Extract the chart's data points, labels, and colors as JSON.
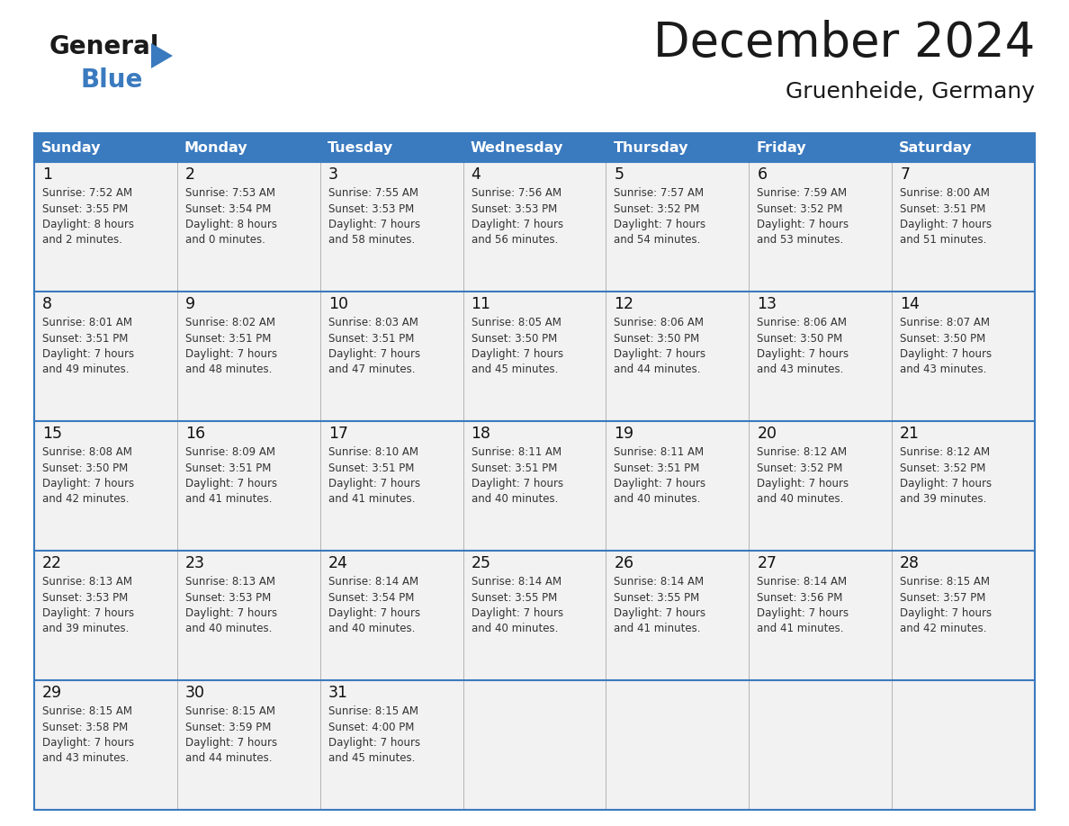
{
  "title": "December 2024",
  "subtitle": "Gruenheide, Germany",
  "header_color": "#3a7abf",
  "header_text_color": "#ffffff",
  "cell_bg_color": "#f2f2f2",
  "cell_bg_alt_color": "#ffffff",
  "border_color": "#3a7abf",
  "row_line_color": "#3a7abf",
  "day_headers": [
    "Sunday",
    "Monday",
    "Tuesday",
    "Wednesday",
    "Thursday",
    "Friday",
    "Saturday"
  ],
  "days": [
    {
      "day": 1,
      "col": 0,
      "row": 0,
      "sunrise": "7:52 AM",
      "sunset": "3:55 PM",
      "daylight": "8 hours and 2 minutes."
    },
    {
      "day": 2,
      "col": 1,
      "row": 0,
      "sunrise": "7:53 AM",
      "sunset": "3:54 PM",
      "daylight": "8 hours and 0 minutes."
    },
    {
      "day": 3,
      "col": 2,
      "row": 0,
      "sunrise": "7:55 AM",
      "sunset": "3:53 PM",
      "daylight": "7 hours and 58 minutes."
    },
    {
      "day": 4,
      "col": 3,
      "row": 0,
      "sunrise": "7:56 AM",
      "sunset": "3:53 PM",
      "daylight": "7 hours and 56 minutes."
    },
    {
      "day": 5,
      "col": 4,
      "row": 0,
      "sunrise": "7:57 AM",
      "sunset": "3:52 PM",
      "daylight": "7 hours and 54 minutes."
    },
    {
      "day": 6,
      "col": 5,
      "row": 0,
      "sunrise": "7:59 AM",
      "sunset": "3:52 PM",
      "daylight": "7 hours and 53 minutes."
    },
    {
      "day": 7,
      "col": 6,
      "row": 0,
      "sunrise": "8:00 AM",
      "sunset": "3:51 PM",
      "daylight": "7 hours and 51 minutes."
    },
    {
      "day": 8,
      "col": 0,
      "row": 1,
      "sunrise": "8:01 AM",
      "sunset": "3:51 PM",
      "daylight": "7 hours and 49 minutes."
    },
    {
      "day": 9,
      "col": 1,
      "row": 1,
      "sunrise": "8:02 AM",
      "sunset": "3:51 PM",
      "daylight": "7 hours and 48 minutes."
    },
    {
      "day": 10,
      "col": 2,
      "row": 1,
      "sunrise": "8:03 AM",
      "sunset": "3:51 PM",
      "daylight": "7 hours and 47 minutes."
    },
    {
      "day": 11,
      "col": 3,
      "row": 1,
      "sunrise": "8:05 AM",
      "sunset": "3:50 PM",
      "daylight": "7 hours and 45 minutes."
    },
    {
      "day": 12,
      "col": 4,
      "row": 1,
      "sunrise": "8:06 AM",
      "sunset": "3:50 PM",
      "daylight": "7 hours and 44 minutes."
    },
    {
      "day": 13,
      "col": 5,
      "row": 1,
      "sunrise": "8:06 AM",
      "sunset": "3:50 PM",
      "daylight": "7 hours and 43 minutes."
    },
    {
      "day": 14,
      "col": 6,
      "row": 1,
      "sunrise": "8:07 AM",
      "sunset": "3:50 PM",
      "daylight": "7 hours and 43 minutes."
    },
    {
      "day": 15,
      "col": 0,
      "row": 2,
      "sunrise": "8:08 AM",
      "sunset": "3:50 PM",
      "daylight": "7 hours and 42 minutes."
    },
    {
      "day": 16,
      "col": 1,
      "row": 2,
      "sunrise": "8:09 AM",
      "sunset": "3:51 PM",
      "daylight": "7 hours and 41 minutes."
    },
    {
      "day": 17,
      "col": 2,
      "row": 2,
      "sunrise": "8:10 AM",
      "sunset": "3:51 PM",
      "daylight": "7 hours and 41 minutes."
    },
    {
      "day": 18,
      "col": 3,
      "row": 2,
      "sunrise": "8:11 AM",
      "sunset": "3:51 PM",
      "daylight": "7 hours and 40 minutes."
    },
    {
      "day": 19,
      "col": 4,
      "row": 2,
      "sunrise": "8:11 AM",
      "sunset": "3:51 PM",
      "daylight": "7 hours and 40 minutes."
    },
    {
      "day": 20,
      "col": 5,
      "row": 2,
      "sunrise": "8:12 AM",
      "sunset": "3:52 PM",
      "daylight": "7 hours and 40 minutes."
    },
    {
      "day": 21,
      "col": 6,
      "row": 2,
      "sunrise": "8:12 AM",
      "sunset": "3:52 PM",
      "daylight": "7 hours and 39 minutes."
    },
    {
      "day": 22,
      "col": 0,
      "row": 3,
      "sunrise": "8:13 AM",
      "sunset": "3:53 PM",
      "daylight": "7 hours and 39 minutes."
    },
    {
      "day": 23,
      "col": 1,
      "row": 3,
      "sunrise": "8:13 AM",
      "sunset": "3:53 PM",
      "daylight": "7 hours and 40 minutes."
    },
    {
      "day": 24,
      "col": 2,
      "row": 3,
      "sunrise": "8:14 AM",
      "sunset": "3:54 PM",
      "daylight": "7 hours and 40 minutes."
    },
    {
      "day": 25,
      "col": 3,
      "row": 3,
      "sunrise": "8:14 AM",
      "sunset": "3:55 PM",
      "daylight": "7 hours and 40 minutes."
    },
    {
      "day": 26,
      "col": 4,
      "row": 3,
      "sunrise": "8:14 AM",
      "sunset": "3:55 PM",
      "daylight": "7 hours and 41 minutes."
    },
    {
      "day": 27,
      "col": 5,
      "row": 3,
      "sunrise": "8:14 AM",
      "sunset": "3:56 PM",
      "daylight": "7 hours and 41 minutes."
    },
    {
      "day": 28,
      "col": 6,
      "row": 3,
      "sunrise": "8:15 AM",
      "sunset": "3:57 PM",
      "daylight": "7 hours and 42 minutes."
    },
    {
      "day": 29,
      "col": 0,
      "row": 4,
      "sunrise": "8:15 AM",
      "sunset": "3:58 PM",
      "daylight": "7 hours and 43 minutes."
    },
    {
      "day": 30,
      "col": 1,
      "row": 4,
      "sunrise": "8:15 AM",
      "sunset": "3:59 PM",
      "daylight": "7 hours and 44 minutes."
    },
    {
      "day": 31,
      "col": 2,
      "row": 4,
      "sunrise": "8:15 AM",
      "sunset": "4:00 PM",
      "daylight": "7 hours and 45 minutes."
    }
  ],
  "logo_color_general": "#1a1a1a",
  "logo_color_blue": "#3a7abf",
  "logo_triangle_color": "#3a7abf",
  "fig_width": 11.88,
  "fig_height": 9.18,
  "dpi": 100
}
